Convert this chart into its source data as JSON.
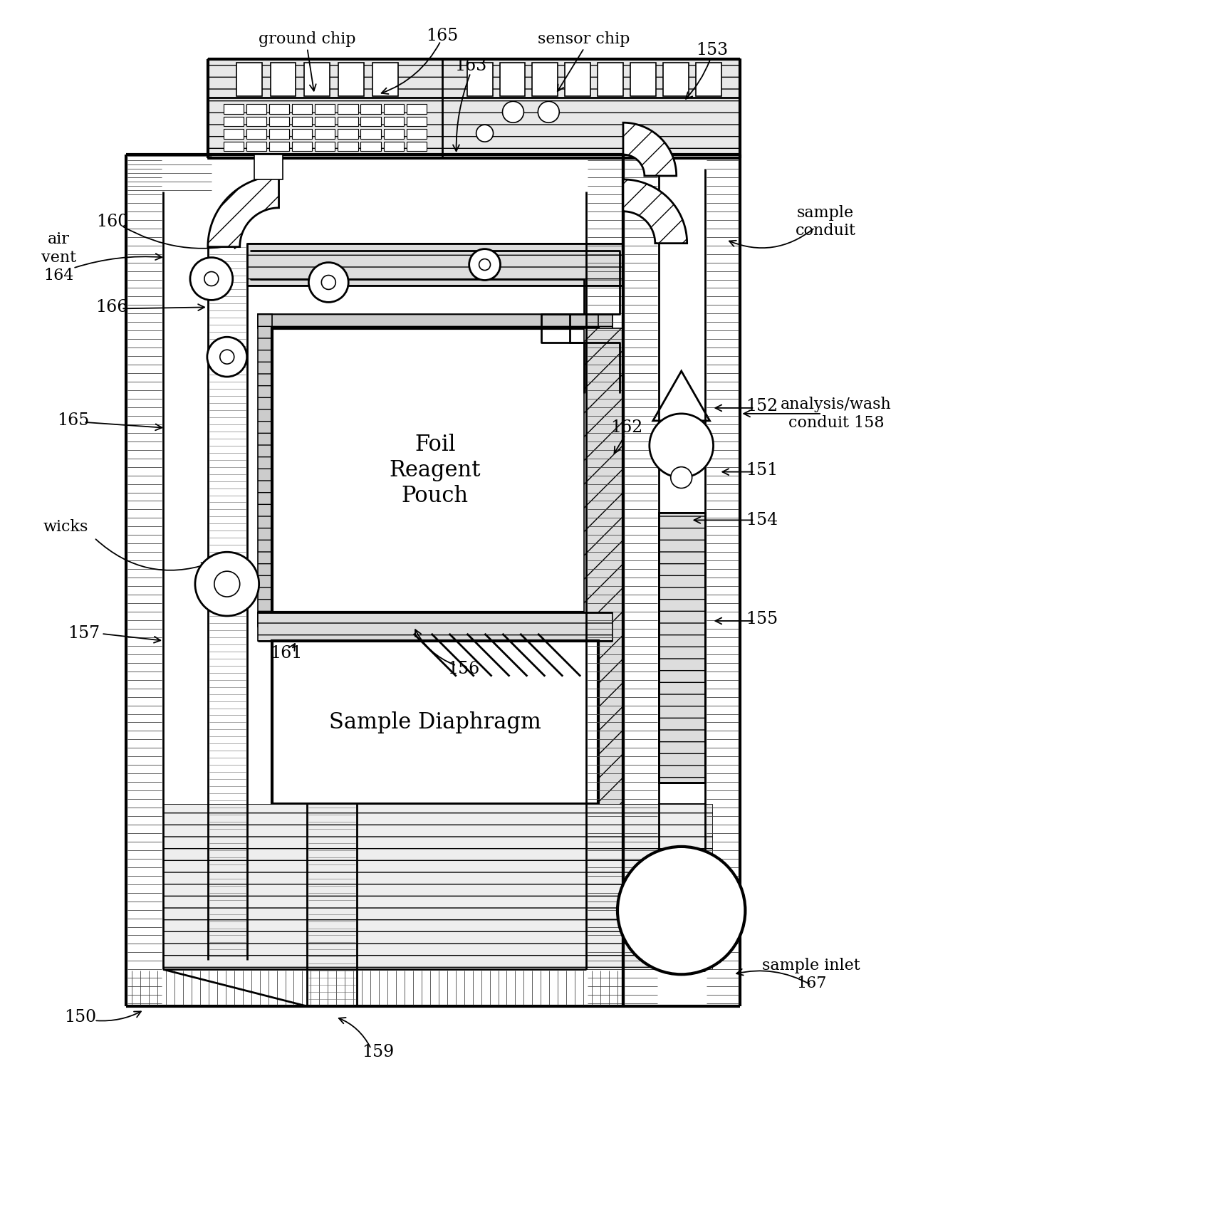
{
  "bg_color": "#ffffff",
  "lc": "#000000",
  "fig_width": 17.2,
  "fig_height": 17.02,
  "labels": {
    "165_top": "165",
    "163": "163",
    "153": "153",
    "ground_chip": "ground chip",
    "sensor_chip": "sensor chip",
    "160": "160",
    "air_vent": "air\nvent\n164",
    "166": "166",
    "165_left": "165",
    "wicks": "wicks",
    "157": "157",
    "foil_reagent": "Foil\nReagent\nPouch",
    "162": "162",
    "154": "154",
    "152": "152",
    "151": "151",
    "150": "150",
    "159": "159",
    "161": "161",
    "156": "156",
    "155": "155",
    "sample_diaphragm": "Sample Diaphragm",
    "sample_conduit": "sample\nconduit",
    "analysis_wash": "analysis/wash\nconduit 158",
    "sample_inlet": "sample inlet\n167"
  }
}
